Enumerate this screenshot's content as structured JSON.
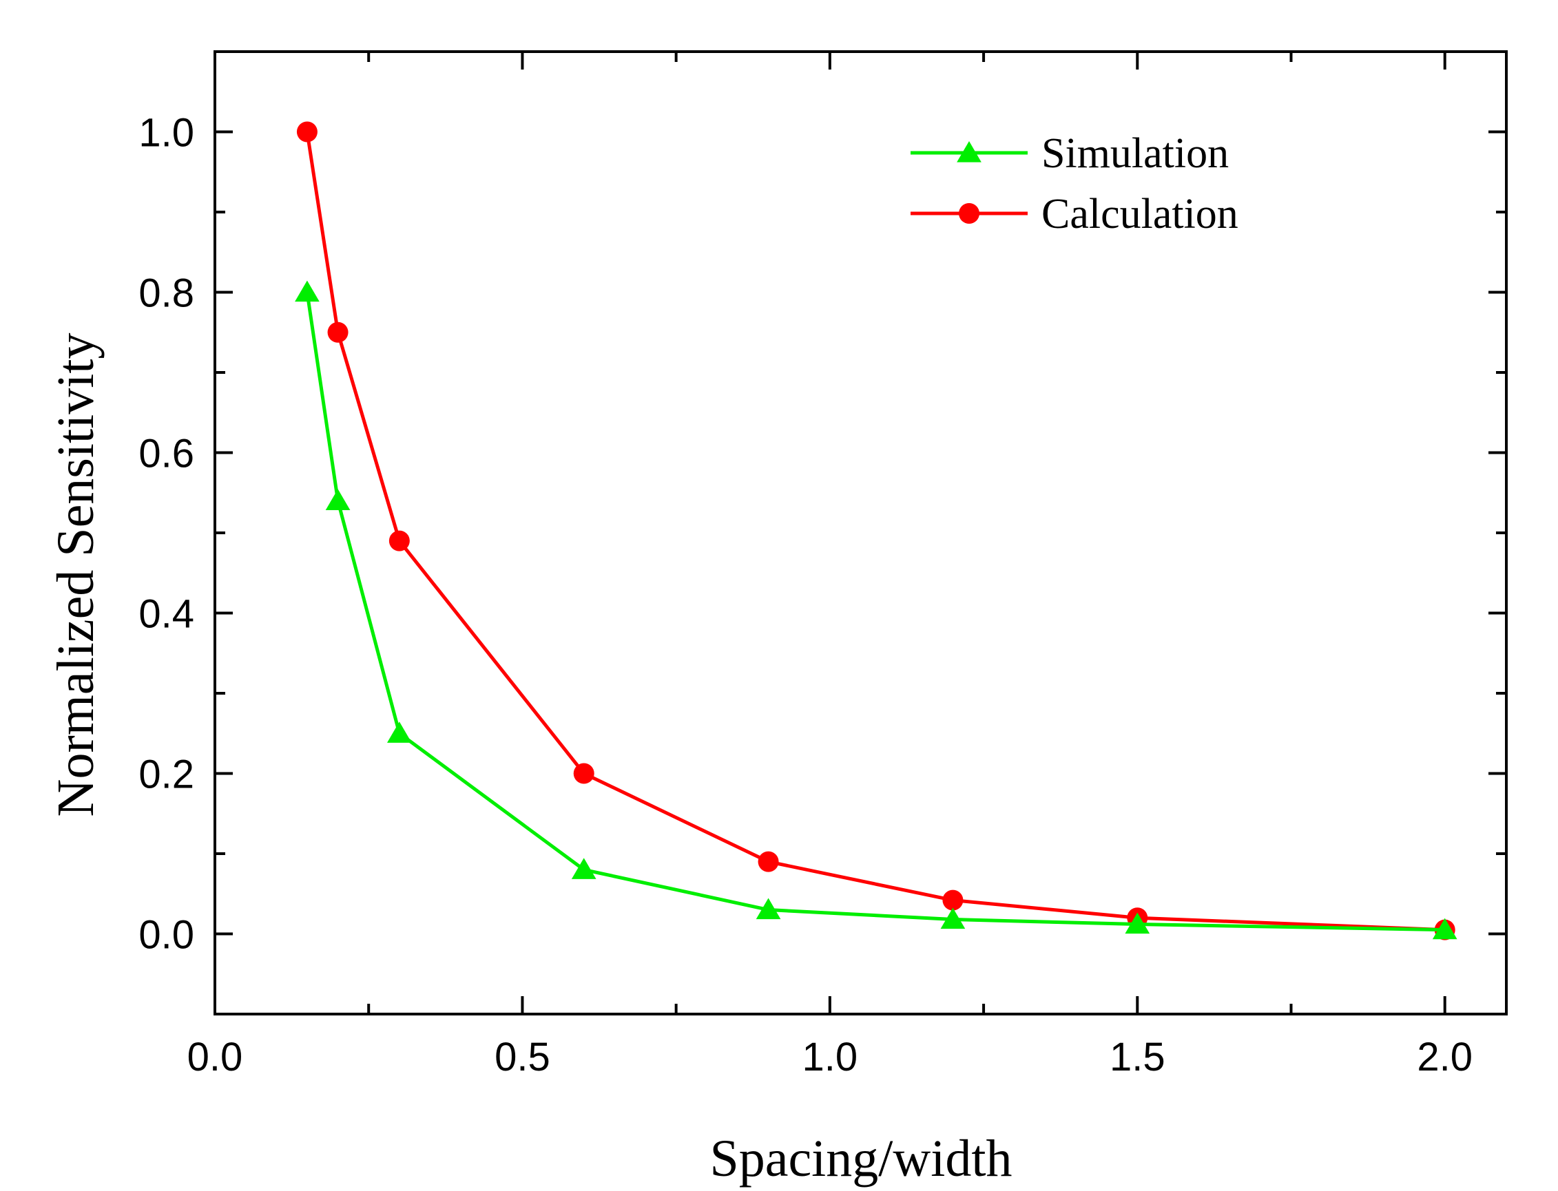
{
  "chart_data": {
    "type": "line",
    "title": "",
    "xlabel": "Spacing/width",
    "ylabel": "Normalized Sensitivity",
    "xlim": [
      0.0,
      2.1
    ],
    "ylim": [
      -0.1,
      1.1
    ],
    "x_ticks": [
      "0.0",
      "0.5",
      "1.0",
      "1.5",
      "2.0"
    ],
    "y_ticks": [
      "0.0",
      "0.2",
      "0.4",
      "0.6",
      "0.8",
      "1.0"
    ],
    "grid": false,
    "legend_position": "top-right",
    "series": [
      {
        "name": "Simulation",
        "color": "#00ee00",
        "marker": "triangle",
        "x": [
          0.15,
          0.2,
          0.3,
          0.6,
          0.9,
          1.2,
          1.5,
          2.0
        ],
        "y": [
          0.8,
          0.54,
          0.25,
          0.08,
          0.03,
          0.018,
          0.012,
          0.005
        ]
      },
      {
        "name": "Calculation",
        "color": "#ff0000",
        "marker": "circle",
        "x": [
          0.15,
          0.2,
          0.3,
          0.6,
          0.9,
          1.2,
          1.5,
          2.0
        ],
        "y": [
          1.0,
          0.75,
          0.49,
          0.2,
          0.09,
          0.042,
          0.02,
          0.005
        ]
      }
    ]
  }
}
